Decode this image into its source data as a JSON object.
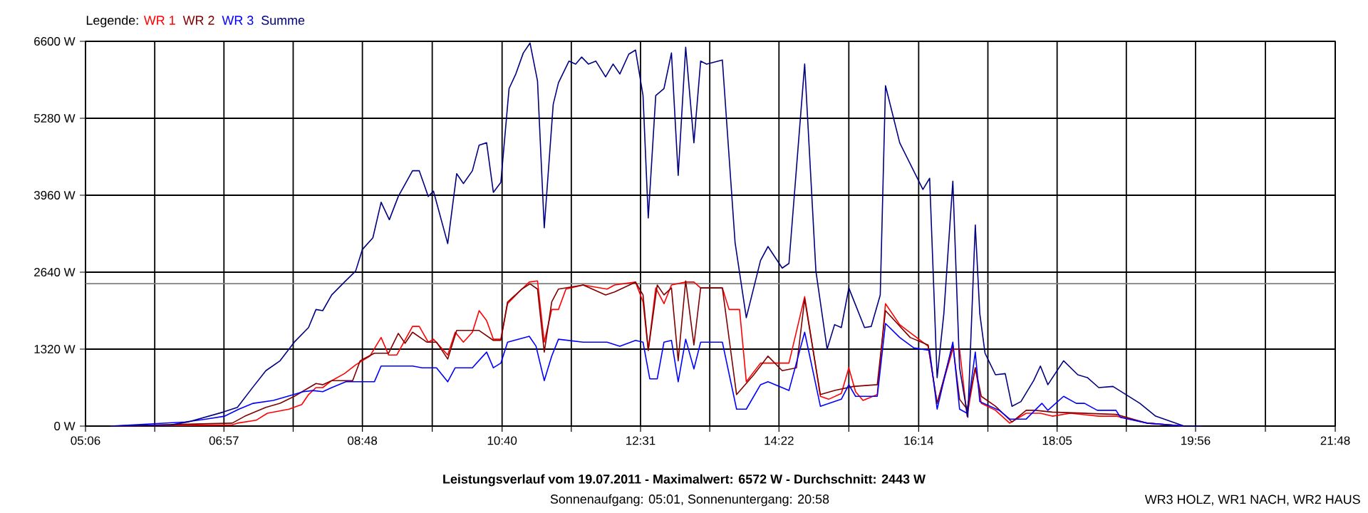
{
  "chart_data": {
    "type": "line",
    "title": "Leistungsverlauf vom 19.07.2011 - Maximalwert: 6572 W - Durchschnitt: 2443 W",
    "subtitle": "Sonnenaufgang: 05:01, Sonnenuntergang: 20:58",
    "annotations": [
      "WR3 HOLZ, WR1 NACH, WR2 HAUS"
    ],
    "legend_title": "Legende:",
    "legend": "top left",
    "grid": true,
    "xlim": [
      5.1,
      21.8
    ],
    "xticks": [
      {
        "value": 5.1,
        "label": "05:06"
      },
      {
        "value": 6.025,
        "label": null
      },
      {
        "value": 6.95,
        "label": "06:57"
      },
      {
        "value": 7.875,
        "label": null
      },
      {
        "value": 8.8,
        "label": "08:48"
      },
      {
        "value": 9.7333,
        "label": null
      },
      {
        "value": 10.6667,
        "label": "10:40"
      },
      {
        "value": 11.5917,
        "label": null
      },
      {
        "value": 12.5167,
        "label": "12:31"
      },
      {
        "value": 13.4417,
        "label": null
      },
      {
        "value": 14.3667,
        "label": "14:22"
      },
      {
        "value": 15.3,
        "label": null
      },
      {
        "value": 16.2333,
        "label": "16:14"
      },
      {
        "value": 17.1583,
        "label": null
      },
      {
        "value": 18.0833,
        "label": "18:05"
      },
      {
        "value": 19.0083,
        "label": null
      },
      {
        "value": 19.9333,
        "label": "19:56"
      },
      {
        "value": 20.8667,
        "label": null
      },
      {
        "value": 21.8,
        "label": "21:48"
      }
    ],
    "ylim": [
      0,
      6600
    ],
    "yticks": [
      {
        "value": 0,
        "label": "0 W"
      },
      {
        "value": 1320,
        "label": "1320 W"
      },
      {
        "value": 2640,
        "label": "2640 W"
      },
      {
        "value": 3960,
        "label": "3960 W"
      },
      {
        "value": 5280,
        "label": "5280 W"
      },
      {
        "value": 6600,
        "label": "6600 W"
      }
    ],
    "ref_lines": [
      {
        "axis": "y",
        "value": 2443,
        "color": "#808080"
      }
    ],
    "series": [
      {
        "name": "WR 1",
        "color": "#ff0000",
        "x": [
          5.44,
          7.06,
          7.13,
          7.38,
          7.53,
          7.82,
          7.99,
          8.08,
          8.18,
          8.27,
          8.39,
          8.56,
          8.71,
          8.9,
          9.05,
          9.15,
          9.26,
          9.47,
          9.56,
          9.68,
          9.75,
          9.94,
          10.04,
          10.15,
          10.27,
          10.36,
          10.46,
          10.55,
          10.65,
          10.74,
          10.89,
          11.03,
          11.14,
          11.23,
          11.33,
          11.42,
          11.52,
          11.75,
          12.07,
          12.17,
          12.45,
          12.55,
          12.62,
          12.72,
          12.83,
          12.93,
          13.12,
          13.23,
          13.32,
          13.61,
          13.7,
          13.84,
          13.93,
          14.12,
          14.5,
          14.71,
          14.92,
          15.03,
          15.2,
          15.3,
          15.39,
          15.49,
          15.68,
          15.79,
          15.98,
          16.36,
          16.48,
          16.69,
          16.78,
          16.88,
          16.99,
          17.07,
          17.26,
          17.45,
          17.67,
          17.86,
          18.02,
          18.26,
          18.64,
          18.87,
          19.29,
          19.78
        ],
        "values": [
          0,
          20,
          50,
          100,
          220,
          290,
          370,
          540,
          660,
          660,
          780,
          900,
          1050,
          1200,
          1520,
          1220,
          1220,
          1710,
          1710,
          1440,
          1490,
          1220,
          1610,
          1440,
          1610,
          1980,
          1810,
          1490,
          1490,
          2100,
          2300,
          2470,
          2490,
          1440,
          2000,
          2000,
          2350,
          2420,
          2350,
          2420,
          2470,
          2130,
          1300,
          2370,
          2100,
          2420,
          2470,
          2470,
          2370,
          2370,
          2000,
          2000,
          760,
          1080,
          1080,
          2220,
          510,
          460,
          560,
          1000,
          590,
          440,
          540,
          2100,
          1740,
          1370,
          390,
          1320,
          1320,
          170,
          1000,
          390,
          270,
          50,
          220,
          220,
          170,
          220,
          170,
          170,
          50,
          0
        ]
      },
      {
        "name": "WR 2",
        "color": "#800000",
        "x": [
          5.44,
          7.06,
          7.23,
          7.51,
          7.7,
          7.89,
          8.18,
          8.27,
          8.39,
          8.67,
          8.77,
          8.96,
          9.15,
          9.28,
          9.37,
          9.47,
          9.66,
          9.79,
          9.94,
          10.06,
          10.36,
          10.55,
          10.65,
          10.74,
          10.93,
          11.04,
          11.14,
          11.23,
          11.33,
          11.42,
          11.75,
          12.05,
          12.17,
          12.45,
          12.55,
          12.62,
          12.74,
          12.83,
          12.93,
          13.02,
          13.12,
          13.23,
          13.32,
          13.61,
          13.8,
          14.03,
          14.22,
          14.41,
          14.6,
          14.71,
          14.92,
          15.11,
          15.36,
          15.68,
          15.79,
          16.12,
          16.36,
          16.48,
          16.69,
          16.78,
          16.88,
          16.99,
          17.07,
          17.26,
          17.48,
          17.67,
          17.79,
          18.02,
          18.87,
          19.29,
          19.78
        ],
        "values": [
          0,
          50,
          170,
          320,
          390,
          510,
          730,
          710,
          780,
          780,
          1120,
          1250,
          1250,
          1590,
          1420,
          1610,
          1440,
          1440,
          1150,
          1640,
          1640,
          1470,
          1470,
          2130,
          2350,
          2440,
          2350,
          1270,
          2130,
          2350,
          2420,
          2250,
          2300,
          2470,
          2250,
          1300,
          2420,
          2250,
          2370,
          1120,
          2490,
          1390,
          2370,
          2370,
          540,
          880,
          1200,
          950,
          1000,
          2180,
          540,
          610,
          680,
          710,
          1980,
          1520,
          1390,
          390,
          1390,
          460,
          290,
          1000,
          510,
          340,
          70,
          270,
          270,
          240,
          200,
          50,
          0
        ]
      },
      {
        "name": "WR 3",
        "color": "#0000ff",
        "x": [
          5.44,
          6.43,
          6.71,
          6.96,
          7.15,
          7.34,
          7.61,
          7.8,
          8.01,
          8.14,
          8.27,
          8.39,
          8.58,
          8.96,
          9.05,
          9.47,
          9.6,
          9.79,
          9.94,
          10.04,
          10.27,
          10.46,
          10.55,
          10.65,
          10.74,
          11.03,
          11.12,
          11.23,
          11.33,
          11.42,
          11.75,
          12.07,
          12.24,
          12.45,
          12.55,
          12.64,
          12.74,
          12.83,
          12.93,
          13.02,
          13.12,
          13.23,
          13.32,
          13.61,
          13.8,
          13.93,
          14.12,
          14.22,
          14.5,
          14.71,
          14.92,
          15.2,
          15.3,
          15.39,
          15.68,
          15.79,
          15.98,
          16.17,
          16.38,
          16.48,
          16.69,
          16.78,
          16.88,
          16.99,
          17.05,
          17.31,
          17.45,
          17.67,
          17.88,
          17.96,
          18.17,
          18.34,
          18.45,
          18.62,
          18.87,
          18.93,
          19.29,
          19.78
        ],
        "values": [
          0,
          70,
          120,
          170,
          290,
          390,
          440,
          510,
          590,
          610,
          590,
          660,
          760,
          760,
          1030,
          1030,
          1000,
          1000,
          760,
          1000,
          1000,
          1270,
          1000,
          1080,
          1440,
          1540,
          1370,
          780,
          1200,
          1490,
          1440,
          1440,
          1370,
          1470,
          1440,
          810,
          810,
          1440,
          1470,
          760,
          1490,
          980,
          1440,
          1440,
          290,
          290,
          710,
          760,
          610,
          1610,
          340,
          460,
          710,
          510,
          510,
          1760,
          1520,
          1340,
          1300,
          290,
          1440,
          290,
          220,
          1270,
          420,
          270,
          120,
          120,
          390,
          270,
          510,
          390,
          390,
          270,
          270,
          150,
          50,
          0
        ]
      },
      {
        "name": "Summe",
        "color": "#000080",
        "x": [
          5.44,
          6.24,
          6.47,
          6.94,
          7.13,
          7.32,
          7.51,
          7.7,
          7.89,
          8.08,
          8.18,
          8.27,
          8.39,
          8.56,
          8.71,
          8.8,
          8.94,
          9.05,
          9.16,
          9.28,
          9.47,
          9.56,
          9.68,
          9.75,
          9.94,
          10.06,
          10.15,
          10.27,
          10.36,
          10.46,
          10.55,
          10.65,
          10.76,
          10.85,
          10.95,
          11.04,
          11.14,
          11.23,
          11.35,
          11.42,
          11.56,
          11.65,
          11.73,
          11.82,
          11.92,
          12.05,
          12.15,
          12.24,
          12.36,
          12.45,
          12.55,
          12.62,
          12.72,
          12.83,
          12.93,
          13.02,
          13.12,
          13.23,
          13.32,
          13.4,
          13.61,
          13.78,
          13.93,
          14.12,
          14.22,
          14.41,
          14.5,
          14.71,
          14.86,
          15.01,
          15.11,
          15.2,
          15.3,
          15.51,
          15.6,
          15.72,
          15.79,
          15.98,
          16.29,
          16.38,
          16.48,
          16.57,
          16.69,
          16.78,
          16.89,
          16.99,
          17.05,
          17.12,
          17.26,
          17.39,
          17.48,
          17.6,
          17.77,
          17.86,
          17.96,
          18.17,
          18.36,
          18.49,
          18.64,
          18.83,
          19.19,
          19.4,
          19.78,
          20.01
        ],
        "values": [
          0,
          20,
          70,
          240,
          320,
          640,
          950,
          1120,
          1440,
          1690,
          2000,
          1980,
          2250,
          2470,
          2660,
          3030,
          3230,
          3840,
          3540,
          3940,
          4380,
          4380,
          3940,
          4030,
          3130,
          4330,
          4160,
          4380,
          4820,
          4860,
          4010,
          4180,
          5790,
          6040,
          6400,
          6570,
          5920,
          3400,
          5520,
          5890,
          6260,
          6210,
          6330,
          6210,
          6260,
          5990,
          6210,
          6040,
          6380,
          6450,
          5670,
          3570,
          5670,
          5790,
          6400,
          4300,
          6500,
          4860,
          6260,
          6210,
          6280,
          3150,
          1860,
          2840,
          3080,
          2710,
          2790,
          6210,
          2660,
          1320,
          1740,
          1690,
          2370,
          1690,
          1710,
          2250,
          5840,
          4860,
          4060,
          4250,
          830,
          1930,
          4200,
          1000,
          150,
          3450,
          1930,
          1250,
          880,
          900,
          340,
          420,
          780,
          1030,
          710,
          1120,
          880,
          830,
          660,
          680,
          390,
          170,
          0,
          0
        ]
      }
    ]
  }
}
